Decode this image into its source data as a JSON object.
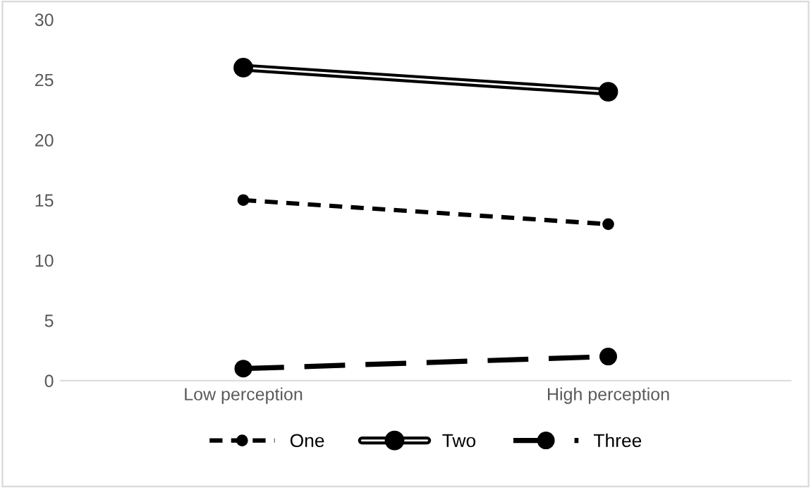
{
  "chart_data": {
    "type": "line",
    "categories": [
      "Low perception",
      "High perception"
    ],
    "series": [
      {
        "name": "One",
        "color": "#000000",
        "values": [
          15,
          13
        ],
        "line_style": "dotted",
        "marker": "circle"
      },
      {
        "name": "Two",
        "color": "#000000",
        "values": [
          26,
          24
        ],
        "line_style": "solid",
        "marker": "circle"
      },
      {
        "name": "Three",
        "color": "#000000",
        "values": [
          1,
          2
        ],
        "line_style": "dashed",
        "marker": "circle"
      }
    ],
    "ylim": [
      0,
      30
    ],
    "yticks": [
      0,
      5,
      10,
      15,
      20,
      25,
      30
    ],
    "grid": false,
    "legend": "bottom"
  }
}
